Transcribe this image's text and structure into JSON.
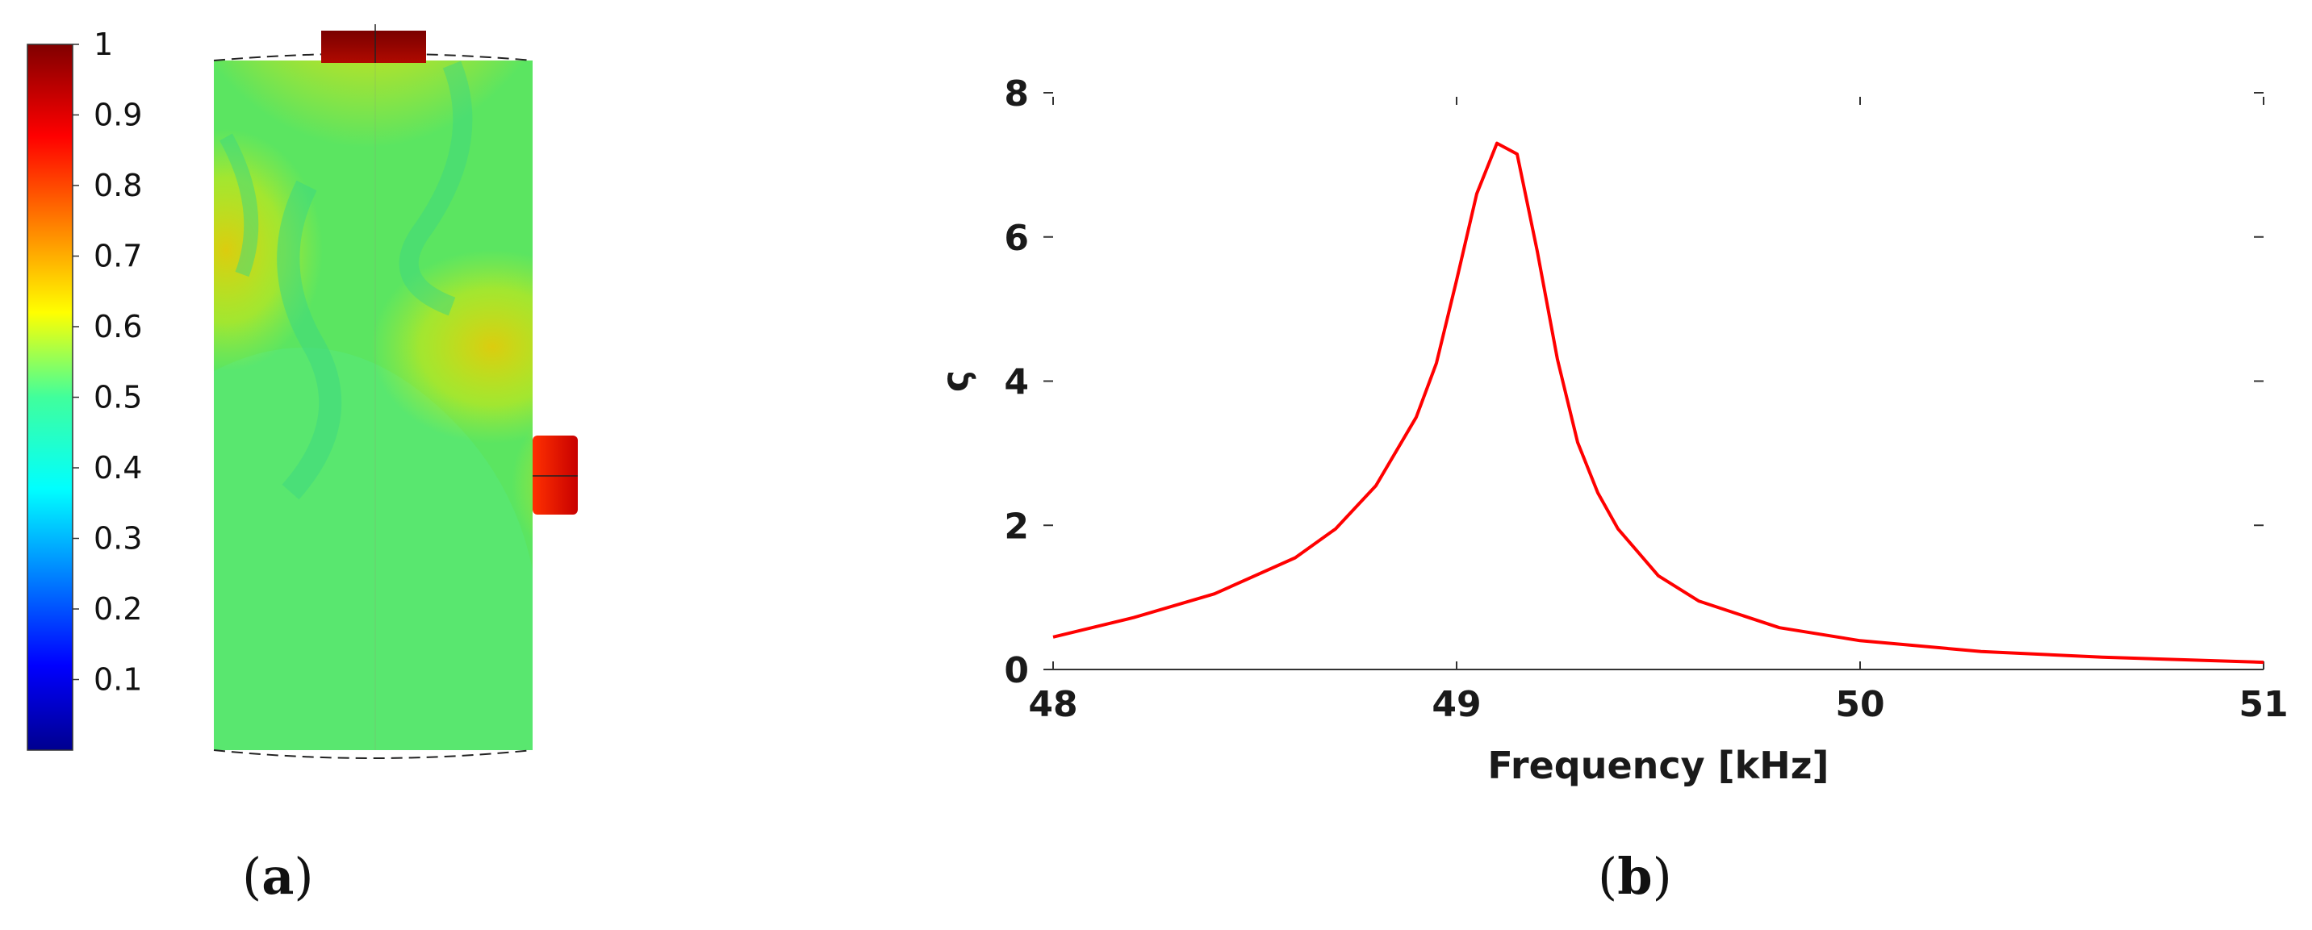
{
  "panels": {
    "a": {
      "caption": "a",
      "colorbar": {
        "ticks": [
          "0.1",
          "0.2",
          "0.3",
          "0.4",
          "0.5",
          "0.6",
          "0.7",
          "0.8",
          "0.9",
          "1"
        ],
        "tick_values": [
          0.1,
          0.2,
          0.3,
          0.4,
          0.5,
          0.6,
          0.7,
          0.8,
          0.9,
          1.0
        ],
        "range": [
          0,
          1
        ],
        "colormap": "jet"
      }
    },
    "b": {
      "caption": "b"
    }
  },
  "chart_data": {
    "type": "line",
    "title": "",
    "xlabel": "Frequency [kHz]",
    "ylabel": "ς",
    "xlim": [
      48,
      51
    ],
    "ylim": [
      0,
      8
    ],
    "xticks": [
      48,
      49,
      50,
      51
    ],
    "yticks": [
      0,
      2,
      4,
      6,
      8
    ],
    "grid": false,
    "series": [
      {
        "color": "#ff0000",
        "x": [
          48.0,
          48.2,
          48.4,
          48.6,
          48.7,
          48.8,
          48.9,
          48.95,
          49.0,
          49.05,
          49.1,
          49.15,
          49.2,
          49.25,
          49.3,
          49.35,
          49.4,
          49.5,
          49.6,
          49.8,
          50.0,
          50.3,
          50.6,
          51.0
        ],
        "y": [
          0.45,
          0.72,
          1.05,
          1.55,
          1.95,
          2.55,
          3.5,
          4.25,
          5.4,
          6.6,
          7.3,
          7.15,
          5.8,
          4.3,
          3.15,
          2.45,
          1.95,
          1.3,
          0.95,
          0.58,
          0.4,
          0.25,
          0.17,
          0.1
        ]
      }
    ]
  }
}
